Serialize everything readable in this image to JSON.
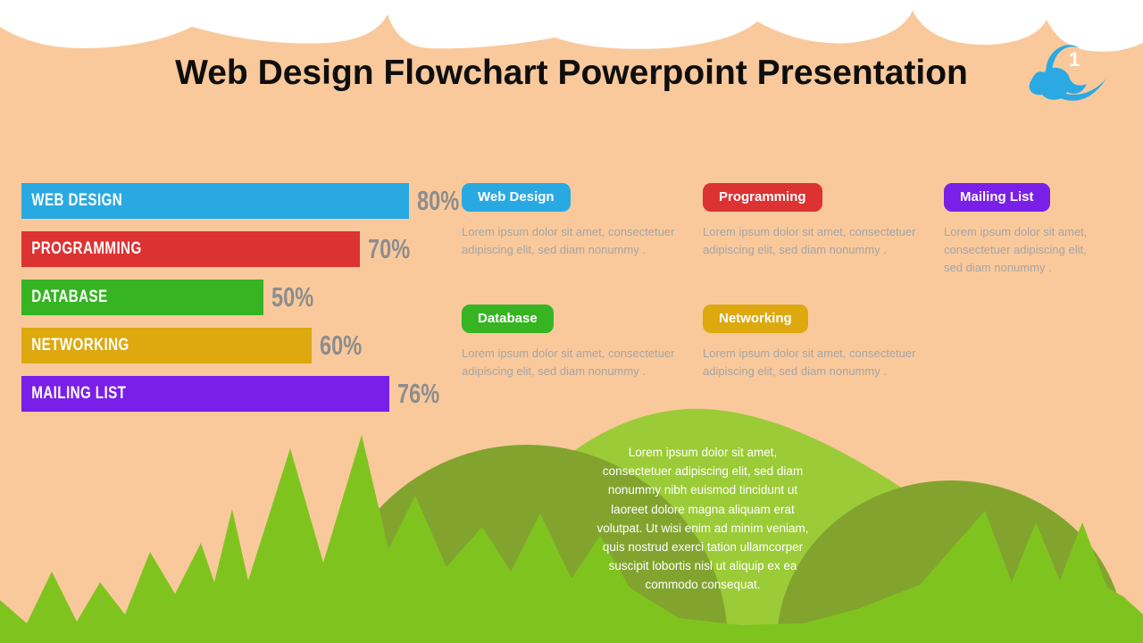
{
  "slide": {
    "title": "Web Design Flowchart Powerpoint Presentation",
    "page_number": "1"
  },
  "colors": {
    "background_peach": "#f9c99c",
    "cloud_white": "#ffffff",
    "grass_green": "#7fc41e",
    "hill_light_green": "#9bcb37",
    "hill_dark_green": "#82a42f",
    "title_text": "#0e0e0e",
    "percent_text": "#8d8d8d",
    "body_text_gray": "#a5a5a5",
    "logo_blue": "#2aa9e2"
  },
  "chart_data": {
    "type": "bar",
    "orientation": "horizontal",
    "unit": "%",
    "xlim": [
      0,
      100
    ],
    "items": [
      {
        "label": "Web Design",
        "value": 80,
        "value_label": "80%",
        "color": "#29a9e2"
      },
      {
        "label": "Programming",
        "value": 70,
        "value_label": "70%",
        "color": "#dc3232"
      },
      {
        "label": "Database",
        "value": 50,
        "value_label": "50%",
        "color": "#36b422"
      },
      {
        "label": "Networking",
        "value": 60,
        "value_label": "60%",
        "color": "#dda90f"
      },
      {
        "label": "Mailing List",
        "value": 76,
        "value_label": "76%",
        "color": "#7a1fe8"
      }
    ]
  },
  "cards": [
    {
      "title": "Web Design",
      "color": "#29a9e2",
      "body": "Lorem ipsum dolor sit amet, consectetuer adipiscing elit, sed diam nonummy ."
    },
    {
      "title": "Programming",
      "color": "#dc3232",
      "body": "Lorem ipsum dolor sit amet, consectetuer adipiscing elit, sed diam nonummy ."
    },
    {
      "title": "Mailing List",
      "color": "#7a1fe8",
      "body": "Lorem ipsum dolor sit amet, consectetuer adipiscing elit, sed diam nonummy ."
    },
    {
      "title": "Database",
      "color": "#36b422",
      "body": "Lorem ipsum dolor sit amet, consectetuer adipiscing elit, sed diam nonummy ."
    },
    {
      "title": "Networking",
      "color": "#dda90f",
      "body": "Lorem ipsum dolor sit amet, consectetuer adipiscing elit, sed diam nonummy ."
    }
  ],
  "hill_paragraph": {
    "text": "Lorem ipsum dolor sit amet, consectetuer adipiscing elit, sed diam nonummy nibh euismod tincidunt ut laoreet dolore magna aliquam erat volutpat. Ut wisi enim ad minim veniam, quis nostrud exerci tation ullamcorper suscipit lobortis nisl ut aliquip ex ea commodo consequat."
  }
}
